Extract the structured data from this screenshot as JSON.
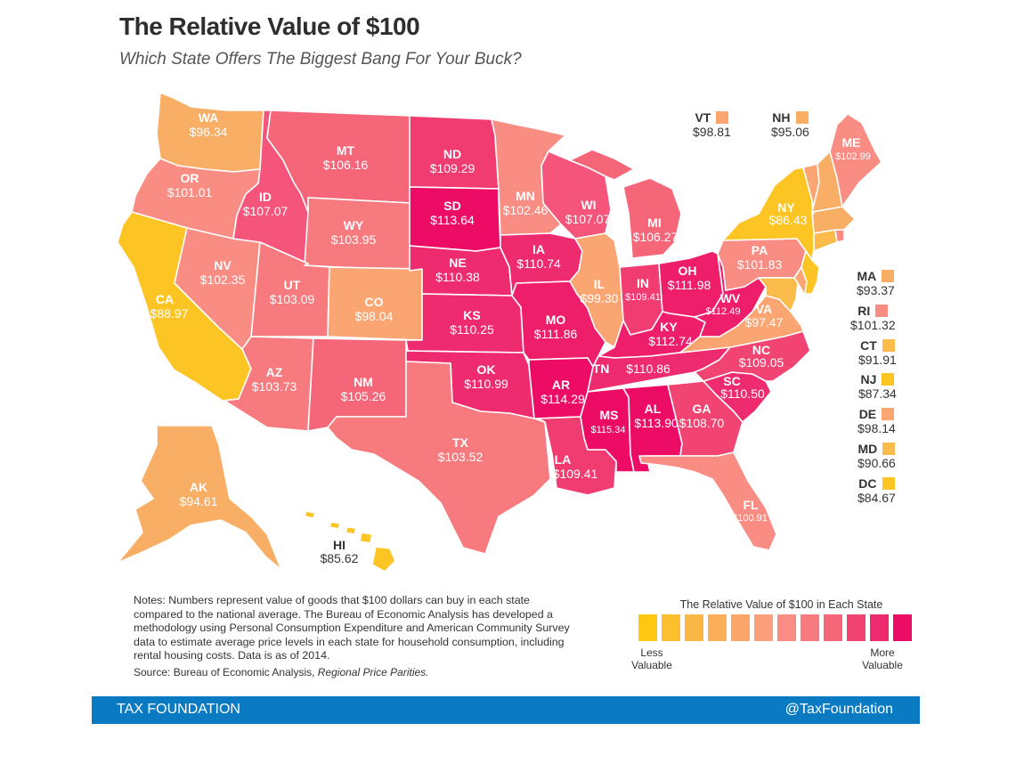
{
  "header": {
    "title": "The Relative Value of $100",
    "subtitle": "Which State Offers The Biggest Bang For Your Buck?"
  },
  "states": {
    "WA": {
      "abbr": "WA",
      "value": "$96.34",
      "color": "#f9ae66"
    },
    "OR": {
      "abbr": "OR",
      "value": "$101.01",
      "color": "#f98c83"
    },
    "CA": {
      "abbr": "CA",
      "value": "$88.97",
      "color": "#fdc524"
    },
    "NV": {
      "abbr": "NV",
      "value": "$102.35",
      "color": "#f98c83"
    },
    "ID": {
      "abbr": "ID",
      "value": "$107.07",
      "color": "#f5557a"
    },
    "MT": {
      "abbr": "MT",
      "value": "$106.16",
      "color": "#f66679"
    },
    "WY": {
      "abbr": "WY",
      "value": "$103.95",
      "color": "#f77a7e"
    },
    "UT": {
      "abbr": "UT",
      "value": "$103.09",
      "color": "#f77a7e"
    },
    "AZ": {
      "abbr": "AZ",
      "value": "$103.73",
      "color": "#f77a7e"
    },
    "CO": {
      "abbr": "CO",
      "value": "$98.04",
      "color": "#fba572"
    },
    "NM": {
      "abbr": "NM",
      "value": "$105.26",
      "color": "#f66679"
    },
    "ND": {
      "abbr": "ND",
      "value": "$109.29",
      "color": "#f13c72"
    },
    "SD": {
      "abbr": "SD",
      "value": "$113.64",
      "color": "#ec0c66"
    },
    "NE": {
      "abbr": "NE",
      "value": "$110.38",
      "color": "#ef2b6f"
    },
    "KS": {
      "abbr": "KS",
      "value": "$110.25",
      "color": "#ef2b6f"
    },
    "OK": {
      "abbr": "OK",
      "value": "$110.99",
      "color": "#ef2b6f"
    },
    "TX": {
      "abbr": "TX",
      "value": "$103.52",
      "color": "#f77a7e"
    },
    "MN": {
      "abbr": "MN",
      "value": "$102.46",
      "color": "#f98c83"
    },
    "IA": {
      "abbr": "IA",
      "value": "$110.74",
      "color": "#ef2b6f"
    },
    "MO": {
      "abbr": "MO",
      "value": "$111.86",
      "color": "#ee1e6b"
    },
    "AR": {
      "abbr": "AR",
      "value": "$114.29",
      "color": "#ec0c66"
    },
    "LA": {
      "abbr": "LA",
      "value": "$109.41",
      "color": "#f13c72"
    },
    "WI": {
      "abbr": "WI",
      "value": "$107.07",
      "color": "#f5557a"
    },
    "IL": {
      "abbr": "IL",
      "value": "$99.30",
      "color": "#fba572"
    },
    "MI": {
      "abbr": "MI",
      "value": "$106.27",
      "color": "#f66679"
    },
    "IN": {
      "abbr": "IN",
      "value": "$109.41",
      "color": "#f13c72"
    },
    "OH": {
      "abbr": "OH",
      "value": "$111.98",
      "color": "#ee1e6b"
    },
    "KY": {
      "abbr": "KY",
      "value": "$112.74",
      "color": "#ee1e6b"
    },
    "TN": {
      "abbr": "TN",
      "value": "$110.86",
      "color": "#ef2b6f"
    },
    "MS": {
      "abbr": "MS",
      "value": "$115.34",
      "color": "#ec0c66"
    },
    "AL": {
      "abbr": "AL",
      "value": "$113.90",
      "color": "#ec0c66"
    },
    "GA": {
      "abbr": "GA",
      "value": "$108.70",
      "color": "#f24472"
    },
    "FL": {
      "abbr": "FL",
      "value": "$100.91",
      "color": "#f98c83"
    },
    "SC": {
      "abbr": "SC",
      "value": "$110.50",
      "color": "#ef2b6f"
    },
    "NC": {
      "abbr": "NC",
      "value": "$109.05",
      "color": "#f24472"
    },
    "VA": {
      "abbr": "VA",
      "value": "$97.47",
      "color": "#fba572"
    },
    "WV": {
      "abbr": "WV",
      "value": "$112.49",
      "color": "#ee1e6b"
    },
    "PA": {
      "abbr": "PA",
      "value": "$101.83",
      "color": "#f98c83"
    },
    "NY": {
      "abbr": "NY",
      "value": "$86.43",
      "color": "#fdc524"
    },
    "ME": {
      "abbr": "ME",
      "value": "$102.99",
      "color": "#f98c83"
    },
    "AK": {
      "abbr": "AK",
      "value": "$94.61",
      "color": "#f9ae66"
    },
    "HI": {
      "abbr": "HI",
      "value": "$85.62",
      "color": "#fdc524"
    },
    "VT": {
      "abbr": "VT",
      "value": "$98.81",
      "color": "#fba572"
    },
    "NH": {
      "abbr": "NH",
      "value": "$95.06",
      "color": "#f9ae66"
    },
    "MA": {
      "abbr": "MA",
      "value": "$93.37",
      "color": "#f9ae66"
    },
    "RI": {
      "abbr": "RI",
      "value": "$101.32",
      "color": "#f98c83"
    },
    "CT": {
      "abbr": "CT",
      "value": "$91.91",
      "color": "#fbbc4c"
    },
    "NJ": {
      "abbr": "NJ",
      "value": "$87.34",
      "color": "#fdc524"
    },
    "DE": {
      "abbr": "DE",
      "value": "$98.14",
      "color": "#fba572"
    },
    "MD": {
      "abbr": "MD",
      "value": "$90.66",
      "color": "#fbbc4c"
    },
    "DC": {
      "abbr": "DC",
      "value": "$84.67",
      "color": "#fdc524"
    }
  },
  "notes": {
    "text": "Notes: Numbers represent value of goods that $100 dollars can buy in each state compared to the national average. The Bureau of Economic Analysis has developed a methodology using Personal Consumption Expenditure and American Community Survey data to estimate average price levels in each state for household consumption, including rental housing costs. Data is as of 2014.",
    "source_label": "Source: Bureau of Economic Analysis, ",
    "source_title": "Regional Price Parities."
  },
  "legend": {
    "title": "The Relative Value of $100 in Each State",
    "low_label_1": "Less",
    "low_label_2": "Valuable",
    "high_label_1": "More",
    "high_label_2": "Valuable",
    "colors": [
      "#fdc80f",
      "#fcc02e",
      "#fbb845",
      "#fbaf58",
      "#fba56a",
      "#fba07a",
      "#f98c83",
      "#f77a7e",
      "#f66679",
      "#f24472",
      "#ef2b6f",
      "#ec0c66"
    ]
  },
  "footer": {
    "left": "TAX FOUNDATION",
    "right": "@TaxFoundation"
  }
}
